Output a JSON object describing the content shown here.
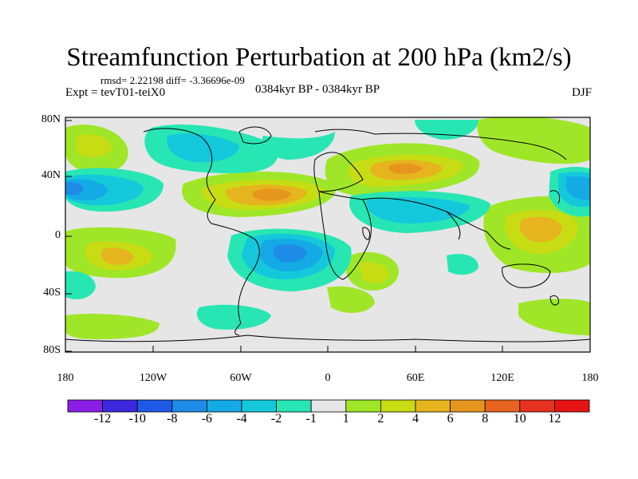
{
  "title": "Streamfunction Perturbation at 200 hPa (km2/s)",
  "stats": "rmsd= 2.22198 diff= -3.36696e-09",
  "experiment": "Expt = tevT01-teiX0",
  "period": "0384kyr BP - 0384kyr BP",
  "season": "DJF",
  "lat_labels": [
    "80N",
    "40N",
    "0",
    "40S",
    "80S"
  ],
  "lon_labels": [
    "180",
    "120W",
    "60W",
    "0",
    "60E",
    "120E",
    "180"
  ],
  "colorbar": {
    "labels": [
      "-12",
      "-10",
      "-8",
      "-6",
      "-4",
      "-2",
      "-1",
      "1",
      "2",
      "4",
      "6",
      "8",
      "10",
      "12"
    ],
    "colors": [
      "#8a1ee6",
      "#3c28dc",
      "#1e5ae6",
      "#1e8ce6",
      "#14aae6",
      "#14c8dc",
      "#28e6b4",
      "#e6e6e6",
      "#a0e628",
      "#c8dc14",
      "#e6b41e",
      "#e6961e",
      "#e6641e",
      "#e6321e",
      "#e61414"
    ]
  }
}
